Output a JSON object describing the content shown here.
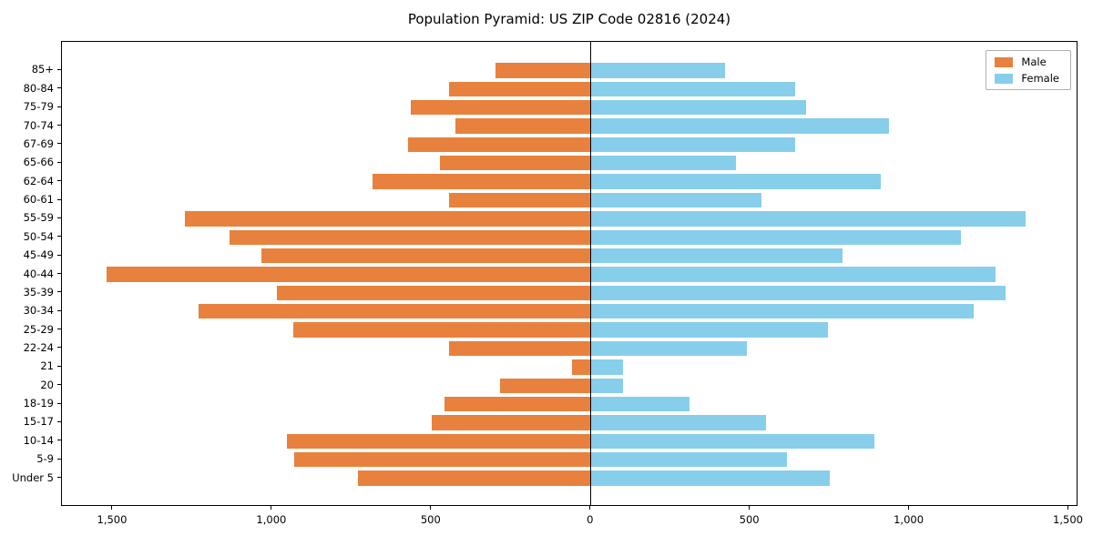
{
  "title": "Population Pyramid: US ZIP Code 02816 (2024)",
  "legend": {
    "male": "Male",
    "female": "Female"
  },
  "colors": {
    "male": "#e8813d",
    "female": "#87ceeb",
    "axis": "#000000",
    "background": "#ffffff"
  },
  "chart_data": {
    "type": "bar",
    "orientation": "horizontal-pyramid",
    "title": "Population Pyramid: US ZIP Code 02816 (2024)",
    "categories": [
      "85+",
      "80-84",
      "75-79",
      "70-74",
      "67-69",
      "65-66",
      "62-64",
      "60-61",
      "55-59",
      "50-54",
      "45-49",
      "40-44",
      "35-39",
      "30-34",
      "25-29",
      "22-24",
      "21",
      "20",
      "18-19",
      "15-17",
      "10-14",
      "5-9",
      "Under 5"
    ],
    "series": [
      {
        "name": "Male",
        "side": "left",
        "color": "#e8813d",
        "values": [
          300,
          445,
          565,
          425,
          575,
          475,
          685,
          445,
          1275,
          1135,
          1035,
          1520,
          985,
          1230,
          935,
          445,
          60,
          285,
          460,
          500,
          955,
          930,
          730
        ]
      },
      {
        "name": "Female",
        "side": "right",
        "color": "#87ceeb",
        "values": [
          420,
          640,
          675,
          935,
          640,
          455,
          910,
          535,
          1365,
          1160,
          790,
          1270,
          1300,
          1200,
          745,
          490,
          100,
          100,
          310,
          550,
          890,
          615,
          750
        ]
      }
    ],
    "xlim": [
      -1660,
      1530
    ],
    "x_ticks": [
      -1500,
      -1000,
      -500,
      0,
      500,
      1000,
      1500
    ],
    "x_tick_labels": [
      "1,500",
      "1,000",
      "500",
      "0",
      "500",
      "1,000",
      "1,500"
    ],
    "grid": false,
    "legend_position": "upper right",
    "note": "Male counts plotted as negative (left of zero axis); tick labels show absolute values."
  }
}
